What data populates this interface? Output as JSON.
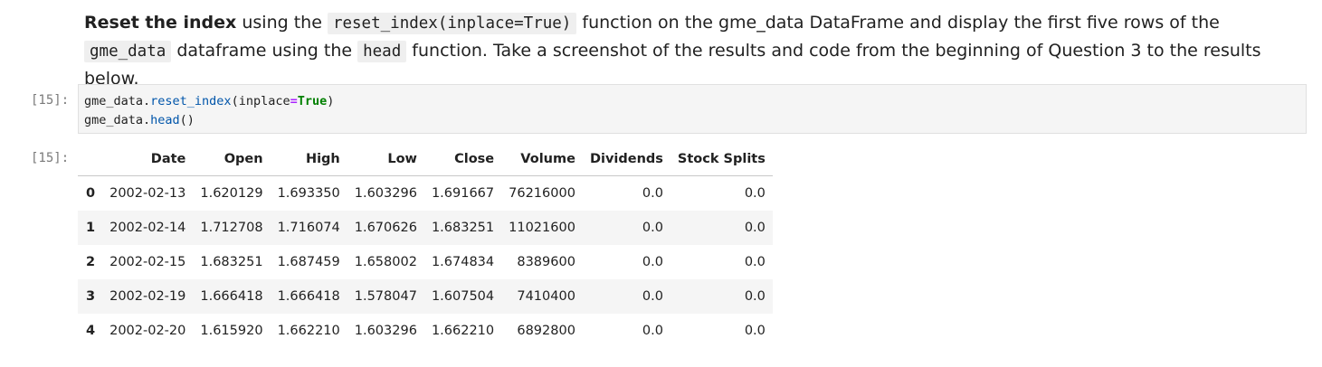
{
  "markdown": {
    "bold_lead": "Reset the index",
    "t1": " using the ",
    "code1": "reset_index(inplace=True)",
    "t2": " function on the gme_data DataFrame and display the first five rows of the ",
    "code2": "gme_data",
    "t3": " dataframe using the ",
    "code3": "head",
    "t4": " function. Take a screenshot of the results and code from the beginning of Question 3 to the results below."
  },
  "code_cell": {
    "prompt": "[15]:",
    "line1": {
      "obj": "gme_data.",
      "method": "reset_index",
      "open": "(inplace",
      "op": "=",
      "kw": "True",
      "close": ")"
    },
    "line2": {
      "obj": "gme_data.",
      "method": "head",
      "call": "()"
    }
  },
  "output": {
    "prompt": "[15]:",
    "columns": [
      "",
      "Date",
      "Open",
      "High",
      "Low",
      "Close",
      "Volume",
      "Dividends",
      "Stock Splits"
    ],
    "rows": [
      [
        "0",
        "2002-02-13",
        "1.620129",
        "1.693350",
        "1.603296",
        "1.691667",
        "76216000",
        "0.0",
        "0.0"
      ],
      [
        "1",
        "2002-02-14",
        "1.712708",
        "1.716074",
        "1.670626",
        "1.683251",
        "11021600",
        "0.0",
        "0.0"
      ],
      [
        "2",
        "2002-02-15",
        "1.683251",
        "1.687459",
        "1.658002",
        "1.674834",
        "8389600",
        "0.0",
        "0.0"
      ],
      [
        "3",
        "2002-02-19",
        "1.666418",
        "1.666418",
        "1.578047",
        "1.607504",
        "7410400",
        "0.0",
        "0.0"
      ],
      [
        "4",
        "2002-02-20",
        "1.615920",
        "1.662210",
        "1.603296",
        "1.662210",
        "6892800",
        "0.0",
        "0.0"
      ]
    ]
  },
  "colors": {
    "method": "#0055aa",
    "operator": "#aa22ff",
    "keyword": "#008000",
    "cell_background": "#f5f5f5",
    "prompt": "#7a7a7a"
  }
}
